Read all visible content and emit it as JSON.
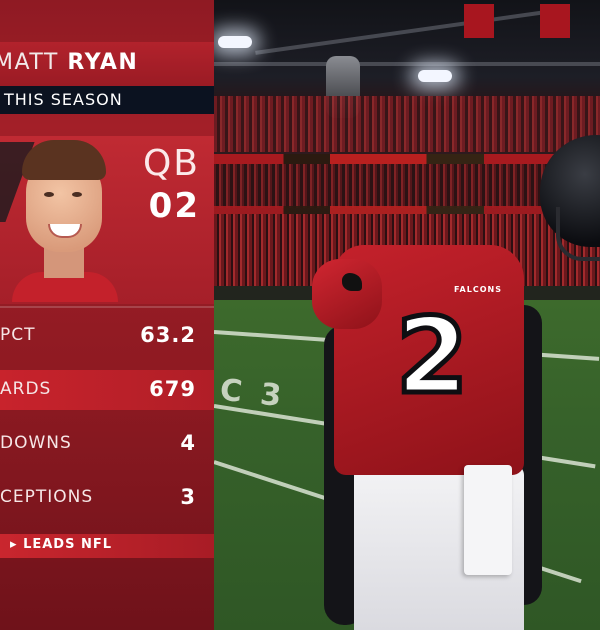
{
  "graphic": {
    "player_first": "MATT",
    "player_last": "RYAN",
    "season_label": "THIS SEASON",
    "position": "QB",
    "jersey": "02",
    "stats": [
      {
        "label": "PCT",
        "value": "63.2",
        "highlight": false
      },
      {
        "label": "ARDS",
        "value": "679",
        "highlight": true
      },
      {
        "label": "DOWNS",
        "value": "4",
        "highlight": false
      },
      {
        "label": "CEPTIONS",
        "value": "3",
        "highlight": false
      }
    ],
    "leads_label": "LEADS NFL",
    "leads_icon": "triangle-right-icon"
  },
  "scene": {
    "jersey_number": "2",
    "jersey_text": "FALCONS"
  },
  "colors": {
    "panel_red": "#a31f28",
    "season_bar": "#0b1220",
    "highlight_red": "#c8232c"
  }
}
